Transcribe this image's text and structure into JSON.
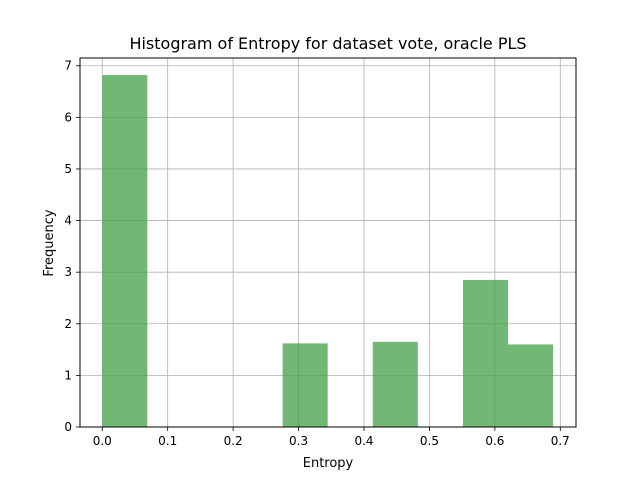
{
  "chart_data": {
    "type": "bar",
    "title": "Histogram of Entropy for dataset vote, oracle PLS",
    "xlabel": "Entropy",
    "ylabel": "Frequency",
    "xlim": [
      -0.034,
      0.724
    ],
    "ylim": [
      0,
      7.15
    ],
    "grid": true,
    "bar_color": "#43a047",
    "bin_edges": [
      0.0,
      0.0689,
      0.1378,
      0.2067,
      0.2756,
      0.3445,
      0.4134,
      0.4823,
      0.5512,
      0.6201,
      0.689
    ],
    "values": [
      6.82,
      0,
      0,
      0,
      1.62,
      0,
      1.65,
      0,
      2.85,
      1.6
    ],
    "xticks": [
      0.0,
      0.1,
      0.2,
      0.3,
      0.4,
      0.5,
      0.6,
      0.7
    ],
    "xtick_labels": [
      "0.0",
      "0.1",
      "0.2",
      "0.3",
      "0.4",
      "0.5",
      "0.6",
      "0.7"
    ],
    "yticks": [
      0,
      1,
      2,
      3,
      4,
      5,
      6,
      7
    ],
    "ytick_labels": [
      "0",
      "1",
      "2",
      "3",
      "4",
      "5",
      "6",
      "7"
    ]
  }
}
